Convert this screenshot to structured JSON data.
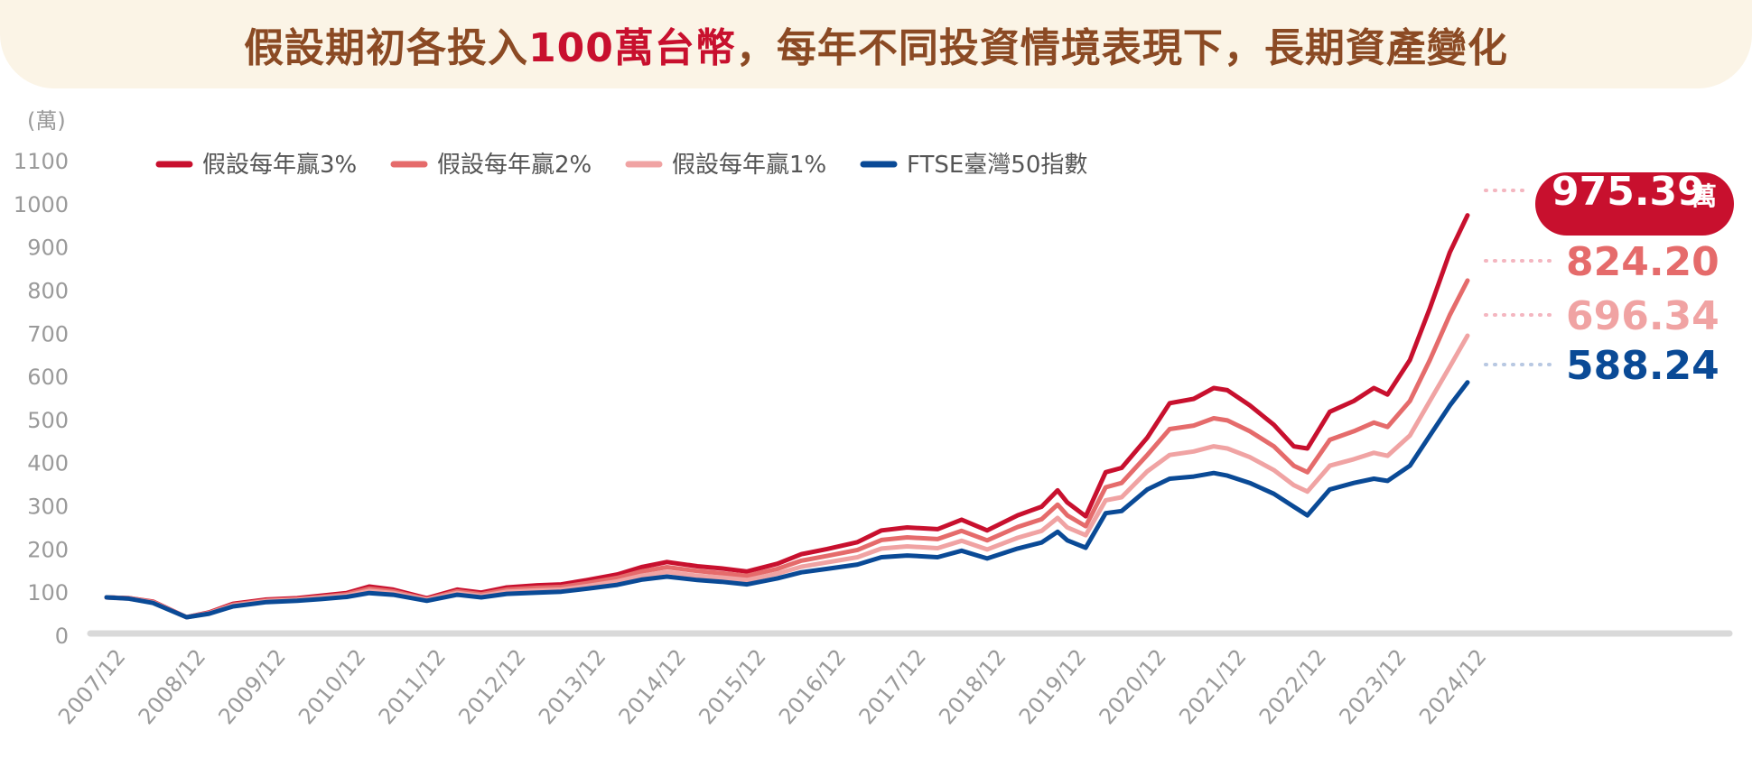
{
  "title": {
    "part1": "假設期初各投入",
    "highlight": "100萬台幣",
    "part2": "，每年不同投資情境表現下，長期資產變化"
  },
  "colors": {
    "s3": "#c8102e",
    "s2": "#e56b6b",
    "s1": "#f0a3a3",
    "index": "#0a4a96",
    "axis": "#d9d9d9",
    "title_bg": "#fbf4e6",
    "title_text": "#8b4a24"
  },
  "chart_data": {
    "type": "line",
    "y_unit": "(萬)",
    "ylim": [
      0,
      1100
    ],
    "y_ticks": [
      0,
      100,
      200,
      300,
      400,
      500,
      600,
      700,
      800,
      900,
      1000,
      1100
    ],
    "x_ticks": [
      "2007/12",
      "2008/12",
      "2009/12",
      "2010/12",
      "2011/12",
      "2012/12",
      "2013/12",
      "2014/12",
      "2015/12",
      "2016/12",
      "2017/12",
      "2018/12",
      "2019/12",
      "2020/12",
      "2021/12",
      "2022/12",
      "2023/12",
      "2024/12"
    ],
    "grid": false,
    "legend_position": "top-left",
    "x": [
      2007.92,
      2008.2,
      2008.5,
      2008.92,
      2009.2,
      2009.5,
      2009.92,
      2010.3,
      2010.6,
      2010.92,
      2011.2,
      2011.5,
      2011.92,
      2012.3,
      2012.6,
      2012.92,
      2013.3,
      2013.6,
      2013.92,
      2014.3,
      2014.6,
      2014.92,
      2015.3,
      2015.6,
      2015.92,
      2016.3,
      2016.6,
      2016.92,
      2017.3,
      2017.6,
      2017.92,
      2018.3,
      2018.6,
      2018.92,
      2019.3,
      2019.6,
      2019.8,
      2019.92,
      2020.15,
      2020.4,
      2020.6,
      2020.92,
      2021.2,
      2021.5,
      2021.75,
      2021.92,
      2022.2,
      2022.5,
      2022.75,
      2022.92,
      2023.2,
      2023.5,
      2023.75,
      2023.92,
      2024.2,
      2024.45,
      2024.7,
      2024.92
    ],
    "series": [
      {
        "name": "假設每年贏3%",
        "values": [
          90,
          88,
          80,
          44,
          55,
          75,
          85,
          88,
          94,
          100,
          115,
          108,
          88,
          108,
          101,
          113,
          118,
          120,
          130,
          143,
          160,
          172,
          162,
          157,
          150,
          168,
          190,
          202,
          218,
          245,
          252,
          248,
          270,
          245,
          280,
          300,
          338,
          310,
          278,
          380,
          390,
          460,
          540,
          550,
          575,
          570,
          535,
          490,
          440,
          435,
          520,
          545,
          575,
          560,
          640,
          760,
          890,
          975.39
        ]
      },
      {
        "name": "假設每年贏2%",
        "values": [
          90,
          88,
          79,
          44,
          54,
          73,
          83,
          86,
          91,
          97,
          110,
          104,
          86,
          104,
          97,
          108,
          112,
          114,
          123,
          135,
          150,
          160,
          151,
          146,
          140,
          156,
          175,
          186,
          200,
          223,
          229,
          225,
          244,
          222,
          253,
          271,
          305,
          280,
          255,
          345,
          355,
          420,
          480,
          488,
          505,
          500,
          475,
          440,
          395,
          380,
          455,
          475,
          495,
          485,
          545,
          640,
          745,
          824.2
        ]
      },
      {
        "name": "假設每年贏1%",
        "values": [
          90,
          87,
          78,
          44,
          53,
          71,
          81,
          84,
          89,
          94,
          105,
          100,
          84,
          100,
          93,
          103,
          106,
          108,
          116,
          127,
          140,
          149,
          140,
          136,
          130,
          145,
          161,
          171,
          183,
          203,
          208,
          204,
          221,
          201,
          228,
          244,
          274,
          252,
          234,
          315,
          322,
          382,
          420,
          428,
          440,
          435,
          415,
          385,
          350,
          335,
          395,
          410,
          425,
          418,
          465,
          545,
          625,
          696.34
        ]
      },
      {
        "name": "FTSE臺灣50指數",
        "values": [
          90,
          87,
          77,
          44,
          52,
          69,
          79,
          82,
          86,
          91,
          100,
          96,
          82,
          96,
          90,
          98,
          101,
          103,
          110,
          119,
          131,
          138,
          130,
          126,
          120,
          134,
          148,
          156,
          166,
          183,
          187,
          183,
          198,
          180,
          203,
          217,
          242,
          222,
          205,
          285,
          290,
          340,
          365,
          370,
          378,
          372,
          355,
          330,
          300,
          280,
          340,
          355,
          365,
          360,
          395,
          465,
          535,
          588.24
        ]
      }
    ],
    "end_labels": [
      "975.39",
      "824.20",
      "696.34",
      "588.24"
    ],
    "end_label_unit": "萬"
  }
}
